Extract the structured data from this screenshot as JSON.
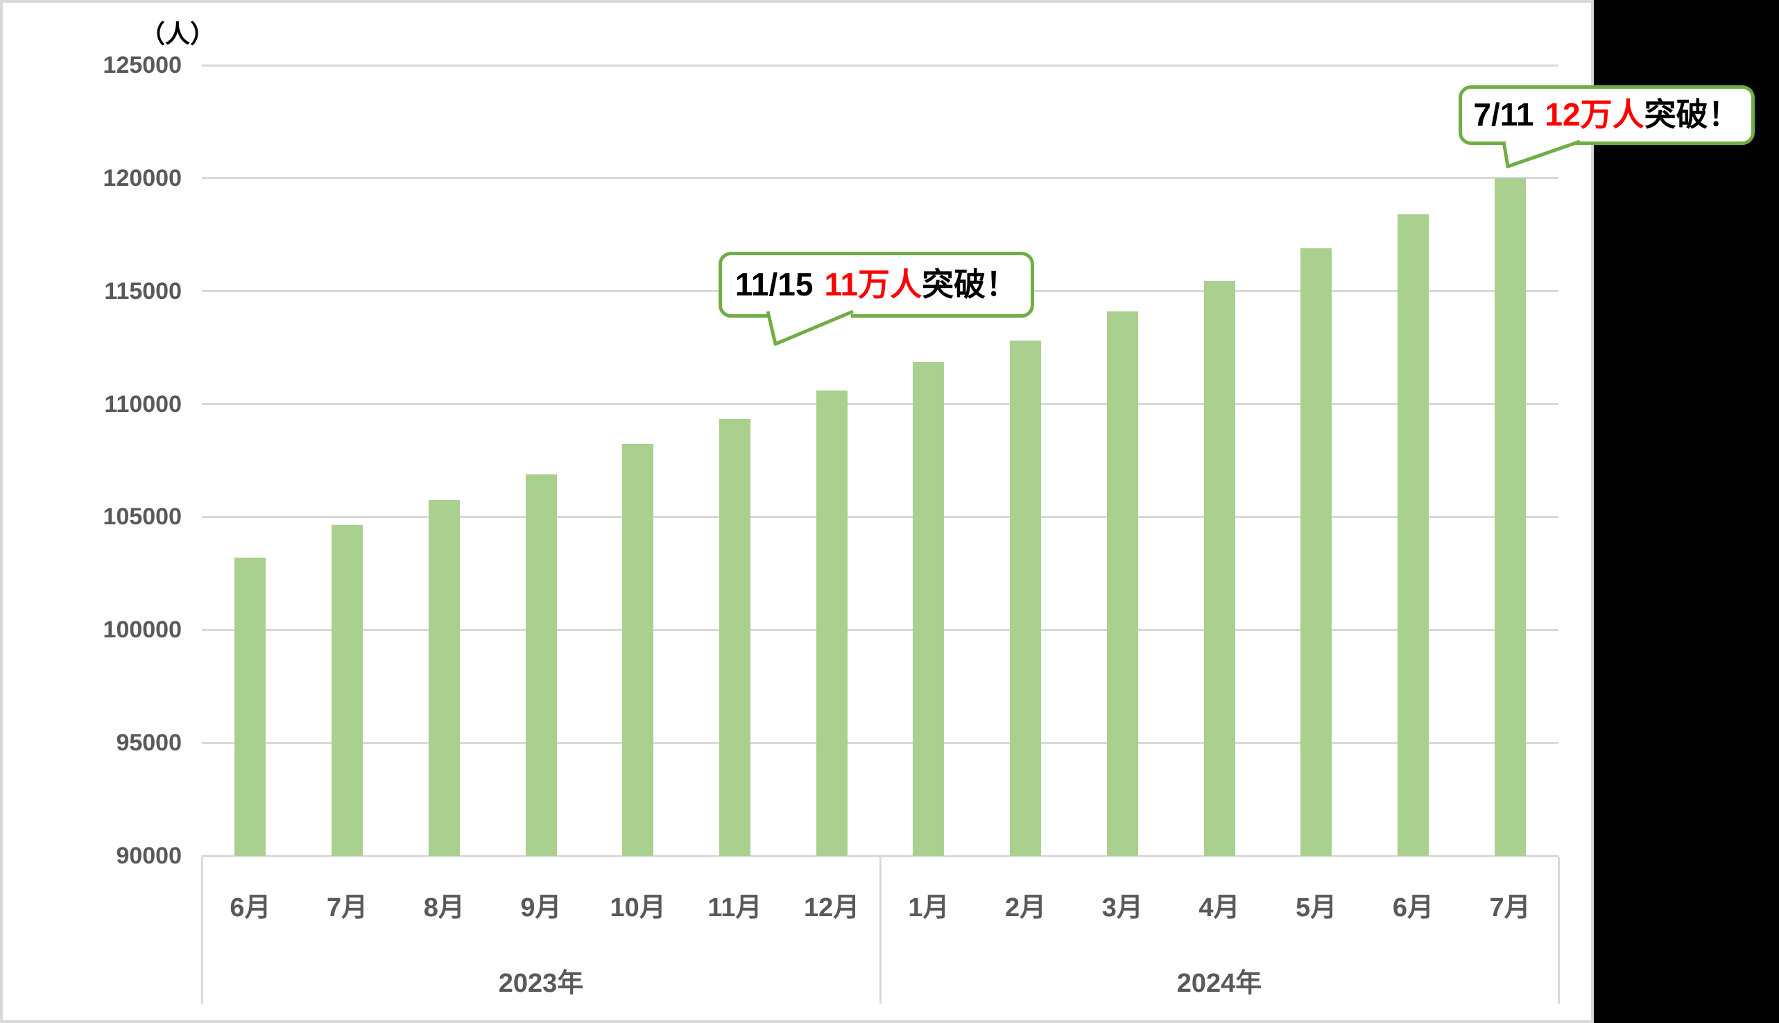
{
  "colors": {
    "bar": "#A9D08E",
    "callout_border": "#70AD47",
    "highlight_red": "#FF0000",
    "axis_text": "#595959",
    "gridline": "#D9D9D9",
    "side_panel": "#000000"
  },
  "chart_data": {
    "type": "bar",
    "unit_label": "（人）",
    "categories": [
      "6月",
      "7月",
      "8月",
      "9月",
      "10月",
      "11月",
      "12月",
      "1月",
      "2月",
      "3月",
      "4月",
      "5月",
      "6月",
      "7月"
    ],
    "year_groups": [
      {
        "label": "2023年",
        "months": 7
      },
      {
        "label": "2024年",
        "months": 7
      }
    ],
    "values": [
      103200,
      104650,
      105750,
      106900,
      108250,
      109350,
      110600,
      111850,
      112800,
      114100,
      115450,
      116900,
      118400,
      120000
    ],
    "ylim": [
      90000,
      125000
    ],
    "y_tick_step": 5000,
    "grid": true,
    "legend": "none",
    "annotations": [
      {
        "date": "11/15",
        "milestone": "11万人",
        "suffix": "突破！"
      },
      {
        "date": "7/11",
        "milestone": "12万人",
        "suffix": "突破！"
      }
    ]
  }
}
